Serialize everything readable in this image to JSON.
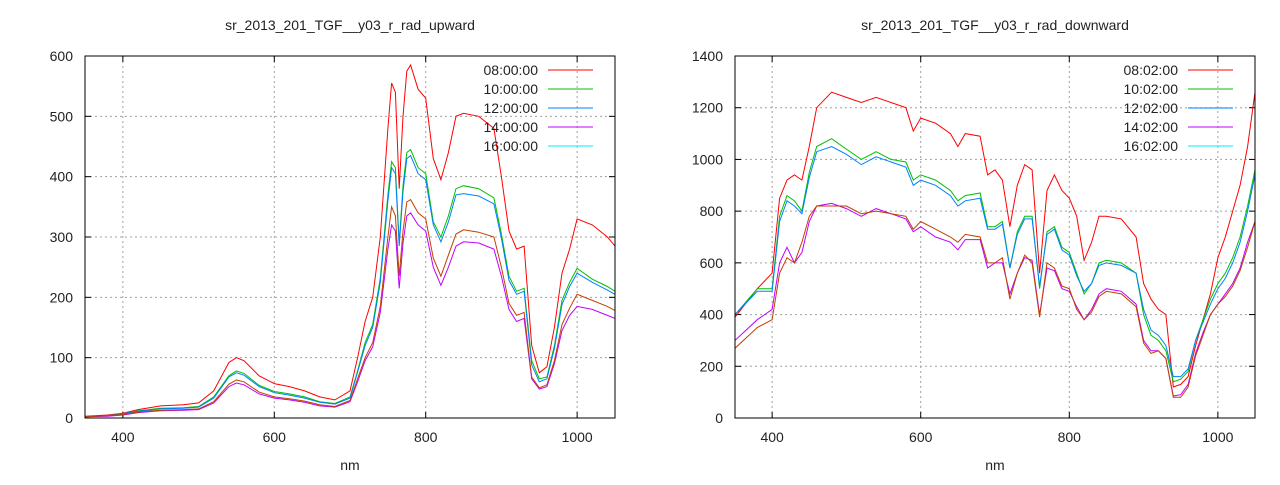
{
  "chart_data": [
    {
      "type": "line",
      "title": "sr_2013_201_TGF__y03_r_rad_upward",
      "xlabel": "nm",
      "ylabel": "",
      "xlim": [
        350,
        1050
      ],
      "ylim": [
        0,
        600
      ],
      "xticks": [
        400,
        600,
        800,
        1000
      ],
      "yticks": [
        0,
        100,
        200,
        300,
        400,
        500,
        600
      ],
      "grid": true,
      "legend_position": "top-right",
      "x": [
        350,
        380,
        400,
        420,
        450,
        480,
        500,
        520,
        540,
        550,
        560,
        580,
        600,
        620,
        640,
        660,
        680,
        700,
        710,
        720,
        730,
        740,
        750,
        755,
        760,
        765,
        770,
        775,
        780,
        790,
        800,
        810,
        820,
        830,
        840,
        850,
        870,
        890,
        900,
        910,
        920,
        930,
        940,
        950,
        960,
        970,
        980,
        990,
        1000,
        1020,
        1040,
        1050
      ],
      "series": [
        {
          "name": "08:00:00",
          "color": "#ff0000",
          "legend_color": "#ff0000",
          "values": [
            3,
            5,
            8,
            14,
            20,
            22,
            25,
            45,
            92,
            100,
            95,
            70,
            57,
            52,
            45,
            35,
            30,
            45,
            100,
            160,
            200,
            300,
            480,
            555,
            540,
            380,
            500,
            575,
            585,
            545,
            530,
            430,
            395,
            440,
            500,
            505,
            500,
            480,
            400,
            310,
            280,
            285,
            120,
            75,
            85,
            150,
            240,
            280,
            330,
            320,
            300,
            285
          ]
        },
        {
          "name": "10:00:00",
          "color": "#00c000",
          "legend_color": "#00c000",
          "values": [
            2,
            4,
            7,
            12,
            16,
            17,
            19,
            35,
            70,
            78,
            74,
            54,
            44,
            40,
            35,
            27,
            24,
            35,
            78,
            125,
            155,
            232,
            370,
            425,
            415,
            290,
            385,
            440,
            445,
            415,
            405,
            325,
            300,
            335,
            380,
            385,
            380,
            365,
            305,
            235,
            210,
            215,
            95,
            65,
            68,
            120,
            195,
            225,
            248,
            230,
            218,
            210
          ]
        },
        {
          "name": "12:00:00",
          "color": "#0080ff",
          "legend_color": "#0080ff",
          "values": [
            2,
            4,
            7,
            11,
            15,
            16,
            18,
            33,
            68,
            75,
            71,
            52,
            42,
            38,
            33,
            26,
            23,
            33,
            76,
            120,
            150,
            225,
            360,
            415,
            405,
            285,
            375,
            430,
            435,
            405,
            395,
            320,
            292,
            325,
            370,
            372,
            368,
            355,
            298,
            228,
            205,
            210,
            88,
            60,
            65,
            115,
            188,
            218,
            240,
            225,
            212,
            205
          ]
        },
        {
          "name": "14:00:00",
          "color": "#c000ff",
          "legend_color": "#c000ff",
          "values": [
            2,
            3,
            5,
            9,
            12,
            13,
            14,
            25,
            52,
            58,
            55,
            40,
            33,
            30,
            26,
            20,
            18,
            27,
            60,
            95,
            118,
            175,
            280,
            320,
            310,
            215,
            290,
            335,
            340,
            320,
            310,
            250,
            220,
            250,
            285,
            292,
            290,
            280,
            235,
            180,
            160,
            165,
            65,
            48,
            52,
            90,
            145,
            170,
            185,
            180,
            170,
            165
          ]
        },
        {
          "name": "16:00:00",
          "color": "#c04000",
          "legend_color": "#00eeee",
          "values": [
            2,
            4,
            6,
            10,
            13,
            14,
            15,
            27,
            56,
            63,
            60,
            43,
            35,
            32,
            28,
            22,
            19,
            29,
            65,
            100,
            125,
            185,
            300,
            350,
            335,
            235,
            310,
            358,
            362,
            340,
            330,
            265,
            235,
            270,
            305,
            312,
            308,
            300,
            250,
            190,
            170,
            175,
            68,
            50,
            55,
            95,
            155,
            182,
            205,
            195,
            185,
            178
          ]
        }
      ]
    },
    {
      "type": "line",
      "title": "sr_2013_201_TGF__y03_r_rad_downward",
      "xlabel": "nm",
      "ylabel": "",
      "xlim": [
        350,
        1050
      ],
      "ylim": [
        0,
        1400
      ],
      "xticks": [
        400,
        600,
        800,
        1000
      ],
      "yticks": [
        0,
        200,
        400,
        600,
        800,
        1000,
        1200,
        1400
      ],
      "grid": true,
      "legend_position": "top-right",
      "x": [
        350,
        380,
        400,
        410,
        420,
        430,
        440,
        450,
        460,
        480,
        500,
        520,
        540,
        560,
        580,
        590,
        600,
        620,
        640,
        650,
        660,
        680,
        690,
        700,
        710,
        720,
        730,
        740,
        750,
        760,
        770,
        780,
        790,
        800,
        810,
        820,
        830,
        840,
        850,
        870,
        890,
        900,
        910,
        920,
        930,
        940,
        950,
        960,
        970,
        980,
        990,
        1000,
        1010,
        1020,
        1030,
        1040,
        1050
      ],
      "series": [
        {
          "name": "08:02:00",
          "color": "#ff0000",
          "legend_color": "#ff0000",
          "values": [
            390,
            500,
            560,
            850,
            920,
            940,
            920,
            1050,
            1200,
            1260,
            1240,
            1220,
            1240,
            1220,
            1200,
            1110,
            1160,
            1140,
            1100,
            1050,
            1100,
            1090,
            940,
            960,
            920,
            740,
            900,
            980,
            960,
            560,
            880,
            940,
            880,
            850,
            780,
            610,
            680,
            780,
            780,
            770,
            700,
            520,
            460,
            420,
            400,
            120,
            130,
            160,
            280,
            380,
            480,
            620,
            700,
            800,
            900,
            1050,
            1260
          ]
        },
        {
          "name": "10:02:00",
          "color": "#00c000",
          "legend_color": "#00c000",
          "values": [
            400,
            500,
            500,
            780,
            860,
            840,
            800,
            950,
            1050,
            1080,
            1040,
            1000,
            1030,
            1000,
            990,
            920,
            940,
            920,
            880,
            840,
            860,
            870,
            740,
            740,
            760,
            580,
            720,
            780,
            780,
            500,
            720,
            740,
            660,
            640,
            560,
            480,
            520,
            600,
            610,
            600,
            560,
            400,
            320,
            300,
            260,
            140,
            150,
            180,
            300,
            380,
            460,
            520,
            560,
            620,
            700,
            820,
            960
          ]
        },
        {
          "name": "12:02:00",
          "color": "#0080ff",
          "legend_color": "#0080ff",
          "values": [
            400,
            490,
            490,
            760,
            840,
            820,
            790,
            930,
            1030,
            1050,
            1020,
            980,
            1010,
            990,
            970,
            900,
            920,
            900,
            860,
            820,
            840,
            850,
            730,
            730,
            750,
            580,
            710,
            770,
            770,
            510,
            710,
            730,
            650,
            630,
            550,
            490,
            520,
            590,
            600,
            590,
            560,
            420,
            340,
            320,
            280,
            160,
            160,
            190,
            300,
            370,
            440,
            500,
            540,
            600,
            680,
            800,
            940
          ]
        },
        {
          "name": "14:02:00",
          "color": "#c000ff",
          "legend_color": "#c000ff",
          "values": [
            300,
            380,
            420,
            600,
            660,
            600,
            640,
            760,
            820,
            830,
            810,
            780,
            810,
            790,
            770,
            720,
            740,
            700,
            680,
            650,
            690,
            690,
            580,
            600,
            600,
            480,
            560,
            620,
            610,
            400,
            580,
            570,
            500,
            490,
            430,
            380,
            420,
            480,
            500,
            490,
            440,
            300,
            260,
            260,
            230,
            85,
            90,
            130,
            250,
            330,
            400,
            440,
            480,
            520,
            580,
            680,
            760
          ]
        },
        {
          "name": "16:02:00",
          "color": "#c04000",
          "legend_color": "#00eeee",
          "values": [
            270,
            350,
            380,
            560,
            620,
            600,
            680,
            780,
            820,
            820,
            820,
            790,
            800,
            790,
            780,
            730,
            760,
            730,
            700,
            680,
            710,
            700,
            600,
            600,
            620,
            460,
            560,
            630,
            600,
            390,
            600,
            580,
            510,
            500,
            420,
            380,
            410,
            470,
            490,
            480,
            430,
            290,
            250,
            260,
            230,
            80,
            80,
            120,
            240,
            320,
            400,
            440,
            470,
            510,
            570,
            660,
            760
          ]
        }
      ]
    }
  ]
}
